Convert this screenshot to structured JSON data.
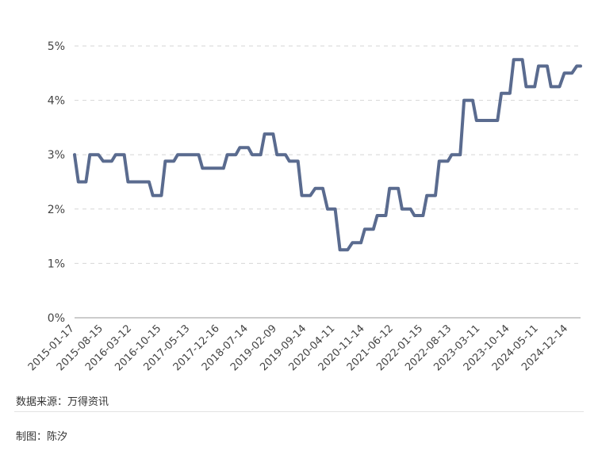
{
  "chart_data": {
    "type": "line",
    "title": "",
    "xlabel": "",
    "ylabel": "",
    "grid": true,
    "ylim": [
      0,
      5
    ],
    "y_ticks": [
      "0%",
      "1%",
      "2%",
      "3%",
      "4%",
      "5%"
    ],
    "x_ticks": [
      "2015-01-17",
      "2015-08-15",
      "2016-03-12",
      "2016-10-15",
      "2017-05-13",
      "2017-12-16",
      "2018-07-14",
      "2019-02-09",
      "2019-09-14",
      "2020-04-11",
      "2020-11-14",
      "2021-06-12",
      "2022-01-15",
      "2022-08-13",
      "2023-03-11",
      "2023-10-14",
      "2024-05-11",
      "2024-12-14"
    ],
    "color": "#5a6b8f",
    "series": [
      {
        "x": [
          "2015-01-17",
          "2015-02-14",
          "2015-03-14",
          "2015-04-11",
          "2015-05-09",
          "2015-06-13",
          "2015-07-11",
          "2015-08-15",
          "2015-09-12",
          "2015-10-17",
          "2015-11-14",
          "2015-12-12",
          "2016-01-16",
          "2016-02-13",
          "2016-03-12",
          "2016-04-16",
          "2016-05-14",
          "2016-06-11",
          "2016-07-16",
          "2016-08-13",
          "2016-09-10",
          "2016-10-15",
          "2016-11-12",
          "2016-12-17",
          "2017-01-14",
          "2017-02-11",
          "2017-03-11",
          "2017-04-15",
          "2017-05-13",
          "2017-06-10",
          "2017-07-15",
          "2017-08-12",
          "2017-09-16",
          "2017-10-14",
          "2017-11-11",
          "2017-12-16",
          "2018-01-13",
          "2018-02-10",
          "2018-03-17",
          "2018-04-14",
          "2018-05-12",
          "2018-06-16",
          "2018-07-14",
          "2018-08-11",
          "2018-09-15",
          "2018-10-13",
          "2018-11-10",
          "2018-12-15",
          "2019-01-12",
          "2019-02-09",
          "2019-03-16",
          "2019-04-13",
          "2019-05-11",
          "2019-06-15",
          "2019-07-13",
          "2019-08-10",
          "2019-09-14",
          "2019-10-12",
          "2019-11-16",
          "2019-12-14",
          "2020-01-11",
          "2020-02-15",
          "2020-03-14",
          "2020-04-11",
          "2020-05-16",
          "2020-06-13",
          "2020-07-11",
          "2020-08-15",
          "2020-09-12",
          "2020-10-17",
          "2020-11-14",
          "2020-12-12",
          "2021-01-16",
          "2021-02-13",
          "2021-03-13",
          "2021-04-17",
          "2021-05-15",
          "2021-06-12",
          "2021-07-17",
          "2021-08-14",
          "2021-09-11",
          "2021-10-16",
          "2021-11-13",
          "2021-12-11",
          "2022-01-15",
          "2022-02-12",
          "2022-03-12",
          "2022-04-16",
          "2022-05-14",
          "2022-06-11",
          "2022-07-16",
          "2022-08-13",
          "2022-09-10",
          "2022-10-15",
          "2022-11-12",
          "2022-12-17",
          "2023-01-14",
          "2023-02-11",
          "2023-03-11",
          "2023-04-15",
          "2023-05-13",
          "2023-06-10",
          "2023-07-15",
          "2023-08-12",
          "2023-09-16",
          "2023-10-14",
          "2023-11-11",
          "2023-12-16",
          "2024-01-13",
          "2024-02-10",
          "2024-03-16",
          "2024-04-13",
          "2024-05-11",
          "2024-06-15",
          "2024-07-13",
          "2024-08-10",
          "2024-09-14",
          "2024-10-12",
          "2024-11-16",
          "2024-12-14",
          "2025-01-11",
          "2025-02-15",
          "2025-03-15"
        ],
        "y": [
          3.0,
          2.5,
          2.5,
          2.5,
          3.0,
          3.0,
          3.0,
          2.88,
          2.88,
          2.88,
          3.0,
          3.0,
          3.0,
          2.5,
          2.5,
          2.5,
          2.5,
          2.5,
          2.5,
          2.25,
          2.25,
          2.25,
          2.88,
          2.88,
          2.88,
          3.0,
          3.0,
          3.0,
          3.0,
          3.0,
          3.0,
          2.75,
          2.75,
          2.75,
          2.75,
          2.75,
          2.75,
          3.0,
          3.0,
          3.0,
          3.13,
          3.13,
          3.13,
          3.0,
          3.0,
          3.0,
          3.38,
          3.38,
          3.38,
          3.0,
          3.0,
          3.0,
          2.88,
          2.88,
          2.88,
          2.25,
          2.25,
          2.25,
          2.38,
          2.38,
          2.38,
          2.0,
          2.0,
          2.0,
          1.25,
          1.25,
          1.25,
          1.38,
          1.38,
          1.38,
          1.63,
          1.63,
          1.63,
          1.88,
          1.88,
          1.88,
          2.38,
          2.38,
          2.38,
          2.0,
          2.0,
          2.0,
          1.88,
          1.88,
          1.88,
          2.25,
          2.25,
          2.25,
          2.88,
          2.88,
          2.88,
          3.0,
          3.0,
          3.0,
          4.0,
          4.0,
          4.0,
          3.63,
          3.63,
          3.63,
          3.63,
          3.63,
          3.63,
          4.13,
          4.13,
          4.13,
          4.75,
          4.75,
          4.75,
          4.25,
          4.25,
          4.25,
          4.63,
          4.63,
          4.63,
          4.25,
          4.25,
          4.25,
          4.5,
          4.5,
          4.5,
          4.63,
          4.63
        ]
      }
    ]
  },
  "footer": {
    "source": "数据来源：万得资讯",
    "author": "制图：陈汐"
  }
}
